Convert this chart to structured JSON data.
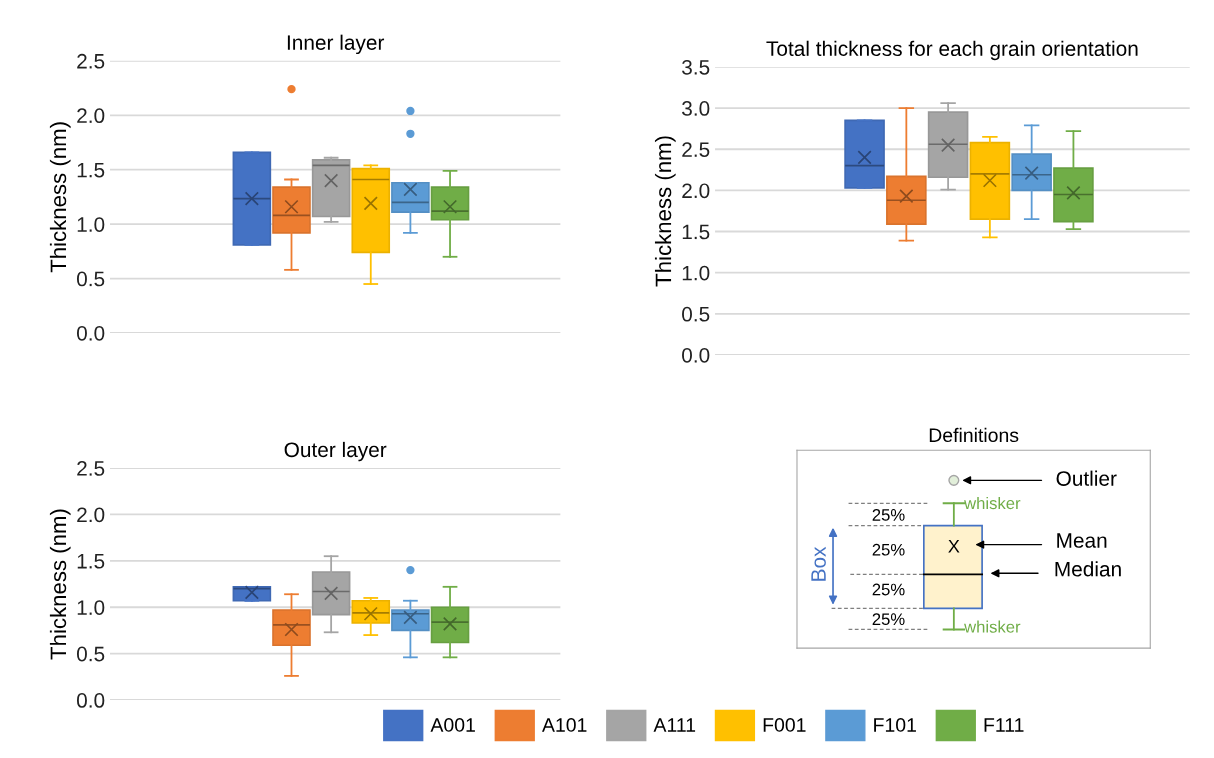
{
  "chart_data": [
    {
      "type": "box",
      "title": "Inner layer",
      "ylabel": "Thickness (nm)",
      "categories": [
        null
      ],
      "ylim": [
        0,
        2.5
      ],
      "yticks": [
        {
          "value": 0,
          "label": "0.0"
        },
        {
          "value": 0.5,
          "label": "0.5"
        },
        {
          "value": 1,
          "label": "1.0"
        },
        {
          "value": 1.5,
          "label": "1.5"
        },
        {
          "value": 2,
          "label": "2.0"
        },
        {
          "value": 2.5,
          "label": "2.5"
        }
      ],
      "grid": "y",
      "tick_labels": "y",
      "legend": "bottom",
      "series": [
        {
          "name": "A001",
          "color": "#4472c4",
          "boxes": [
            {
              "low": 0.81,
              "q1": 0.81,
              "median": 1.235,
              "q3": 1.66,
              "high": 1.66,
              "mean": 1.235
            }
          ]
        },
        {
          "name": "A101",
          "color": "#ed7d31",
          "boxes": [
            {
              "low": 0.58,
              "q1": 0.92,
              "median": 1.08,
              "q3": 1.34,
              "high": 1.41,
              "mean": 1.16,
              "outliers": [
                2.24
              ]
            }
          ]
        },
        {
          "name": "A111",
          "color": "#a5a5a5",
          "boxes": [
            {
              "low": 1.02,
              "q1": 1.07,
              "median": 1.54,
              "q3": 1.59,
              "high": 1.61,
              "mean": 1.4
            }
          ]
        },
        {
          "name": "F001",
          "color": "#ffc000",
          "boxes": [
            {
              "low": 0.45,
              "q1": 0.74,
              "median": 1.41,
              "q3": 1.51,
              "high": 1.54,
              "mean": 1.19
            }
          ]
        },
        {
          "name": "F101",
          "color": "#5b9bd5",
          "boxes": [
            {
              "low": 0.92,
              "q1": 1.11,
              "median": 1.2,
              "q3": 1.38,
              "high": 1.38,
              "mean": 1.32,
              "outliers": [
                2.04,
                1.83
              ]
            }
          ]
        },
        {
          "name": "F111",
          "color": "#70ad47",
          "boxes": [
            {
              "low": 0.7,
              "q1": 1.04,
              "median": 1.12,
              "q3": 1.34,
              "high": 1.49,
              "mean": 1.16
            }
          ]
        }
      ]
    },
    {
      "type": "box",
      "title": "Total thickness for each grain orientation",
      "ylabel": "Thickness (nm)",
      "categories": [
        null
      ],
      "ylim": [
        0,
        3.5
      ],
      "yticks": [
        {
          "value": 0,
          "label": "0.0"
        },
        {
          "value": 0.5,
          "label": "0.5"
        },
        {
          "value": 1,
          "label": "1.0"
        },
        {
          "value": 1.5,
          "label": "1.5"
        },
        {
          "value": 2,
          "label": "2.0"
        },
        {
          "value": 2.5,
          "label": "2.5"
        },
        {
          "value": 3,
          "label": "3.0"
        },
        {
          "value": 3.5,
          "label": "3.5"
        }
      ],
      "grid": "y",
      "tick_labels": "y",
      "series": [
        {
          "color": "#4472c4",
          "boxes": [
            {
              "low": 2.03,
              "q1": 2.03,
              "median": 2.3,
              "q3": 2.85,
              "high": 2.85,
              "mean": 2.4
            }
          ]
        },
        {
          "color": "#ed7d31",
          "boxes": [
            {
              "low": 1.39,
              "q1": 1.59,
              "median": 1.88,
              "q3": 2.17,
              "high": 3.0,
              "mean": 1.93
            }
          ]
        },
        {
          "color": "#a5a5a5",
          "boxes": [
            {
              "low": 2.01,
              "q1": 2.16,
              "median": 2.56,
              "q3": 2.95,
              "high": 3.06,
              "mean": 2.55
            }
          ]
        },
        {
          "color": "#ffc000",
          "boxes": [
            {
              "low": 1.43,
              "q1": 1.65,
              "median": 2.2,
              "q3": 2.58,
              "high": 2.65,
              "mean": 2.12
            }
          ]
        },
        {
          "color": "#5b9bd5",
          "boxes": [
            {
              "low": 1.65,
              "q1": 2.0,
              "median": 2.19,
              "q3": 2.44,
              "high": 2.79,
              "mean": 2.21
            }
          ]
        },
        {
          "color": "#70ad47",
          "boxes": [
            {
              "low": 1.53,
              "q1": 1.62,
              "median": 1.95,
              "q3": 2.27,
              "high": 2.72,
              "mean": 1.97
            }
          ]
        }
      ]
    },
    {
      "type": "box",
      "title": "Outer layer",
      "ylabel": "Thickness (nm)",
      "categories": [
        null
      ],
      "ylim": [
        0,
        2.5
      ],
      "yticks": [
        {
          "value": 0,
          "label": "0.0"
        },
        {
          "value": 0.5,
          "label": "0.5"
        },
        {
          "value": 1,
          "label": "1.0"
        },
        {
          "value": 1.5,
          "label": "1.5"
        },
        {
          "value": 2,
          "label": "2.0"
        },
        {
          "value": 2.5,
          "label": "2.5"
        }
      ],
      "grid": "y",
      "tick_labels": "y",
      "series": [
        {
          "color": "#4472c4",
          "boxes": [
            {
              "low": 1.07,
              "q1": 1.07,
              "median": 1.2,
              "q3": 1.22,
              "high": 1.22,
              "mean": 1.16
            }
          ]
        },
        {
          "color": "#ed7d31",
          "boxes": [
            {
              "low": 0.26,
              "q1": 0.59,
              "median": 0.81,
              "q3": 0.97,
              "high": 1.14,
              "mean": 0.76
            }
          ]
        },
        {
          "color": "#a5a5a5",
          "boxes": [
            {
              "low": 0.73,
              "q1": 0.92,
              "median": 1.17,
              "q3": 1.38,
              "high": 1.55,
              "mean": 1.15
            }
          ]
        },
        {
          "color": "#ffc000",
          "boxes": [
            {
              "low": 0.7,
              "q1": 0.83,
              "median": 0.94,
              "q3": 1.07,
              "high": 1.1,
              "mean": 0.93
            }
          ]
        },
        {
          "color": "#5b9bd5",
          "boxes": [
            {
              "low": 0.46,
              "q1": 0.75,
              "median": 0.93,
              "q3": 0.97,
              "high": 1.07,
              "mean": 0.89,
              "outliers": [
                1.4
              ]
            }
          ]
        },
        {
          "color": "#70ad47",
          "boxes": [
            {
              "low": 0.46,
              "q1": 0.62,
              "median": 0.84,
              "q3": 1.0,
              "high": 1.22,
              "mean": 0.82
            }
          ]
        }
      ]
    },
    {
      "type": "other",
      "title": "Definitions",
      "annotations": [
        "Outlier",
        "whisker",
        "25%",
        "25%",
        "25%",
        "25%",
        "Box",
        "X",
        "Mean",
        "Median",
        "whisker"
      ]
    }
  ]
}
